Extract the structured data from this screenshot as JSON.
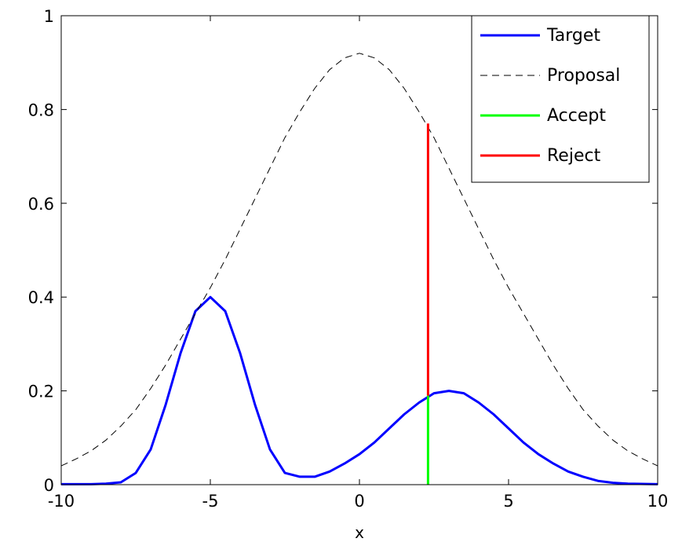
{
  "chart_data": {
    "type": "line",
    "title": "",
    "xlabel": "x",
    "ylabel": "",
    "xlim": [
      -10,
      10
    ],
    "ylim": [
      0,
      1
    ],
    "x_ticks": [
      -10,
      -5,
      0,
      5,
      10
    ],
    "x_tick_labels": [
      "-10",
      "-5",
      "0",
      "5",
      "10"
    ],
    "y_ticks": [
      0,
      0.2,
      0.4,
      0.6,
      0.8,
      1
    ],
    "y_tick_labels": [
      "0",
      "0.2",
      "0.4",
      "0.6",
      "0.8",
      "1"
    ],
    "grid": false,
    "legend_position": "top-right",
    "series": [
      {
        "name": "Target",
        "style": "solid",
        "color": "#0000ff",
        "x": [
          -10,
          -9,
          -8.5,
          -8,
          -7.5,
          -7,
          -6.5,
          -6,
          -5.5,
          -5,
          -4.5,
          -4,
          -3.5,
          -3,
          -2.5,
          -2,
          -1.5,
          -1,
          -0.5,
          0,
          0.5,
          1,
          1.5,
          2,
          2.5,
          3,
          3.5,
          4,
          4.5,
          5,
          5.5,
          6,
          6.5,
          7,
          7.5,
          8,
          8.5,
          9,
          10
        ],
        "y": [
          0.001,
          0.001,
          0.002,
          0.005,
          0.025,
          0.075,
          0.17,
          0.28,
          0.37,
          0.4,
          0.37,
          0.28,
          0.17,
          0.075,
          0.025,
          0.017,
          0.017,
          0.028,
          0.045,
          0.065,
          0.09,
          0.12,
          0.15,
          0.175,
          0.195,
          0.2,
          0.195,
          0.175,
          0.15,
          0.12,
          0.09,
          0.065,
          0.045,
          0.028,
          0.017,
          0.008,
          0.004,
          0.002,
          0.001
        ]
      },
      {
        "name": "Proposal",
        "style": "dashed",
        "color": "#000000",
        "x": [
          -10,
          -9.5,
          -9,
          -8.5,
          -8,
          -7.5,
          -7,
          -6.5,
          -6,
          -5.5,
          -5,
          -4.5,
          -4,
          -3.5,
          -3,
          -2.5,
          -2,
          -1.5,
          -1,
          -0.5,
          0,
          0.5,
          1,
          1.5,
          2,
          2.5,
          3,
          3.5,
          4,
          4.5,
          5,
          5.5,
          6,
          6.5,
          7,
          7.5,
          8,
          8.5,
          9,
          9.5,
          10
        ],
        "y": [
          0.04,
          0.055,
          0.072,
          0.095,
          0.125,
          0.16,
          0.205,
          0.255,
          0.31,
          0.365,
          0.42,
          0.48,
          0.545,
          0.61,
          0.675,
          0.74,
          0.795,
          0.845,
          0.885,
          0.91,
          0.92,
          0.91,
          0.885,
          0.845,
          0.795,
          0.74,
          0.675,
          0.61,
          0.545,
          0.48,
          0.42,
          0.365,
          0.31,
          0.255,
          0.205,
          0.16,
          0.125,
          0.095,
          0.072,
          0.055,
          0.04
        ]
      },
      {
        "name": "Accept",
        "style": "solid",
        "color": "#00ff00",
        "x": [
          2.3,
          2.3
        ],
        "y": [
          0,
          0.19
        ]
      },
      {
        "name": "Reject",
        "style": "solid",
        "color": "#ff0000",
        "x": [
          2.3,
          2.3
        ],
        "y": [
          0.19,
          0.77
        ]
      }
    ]
  }
}
